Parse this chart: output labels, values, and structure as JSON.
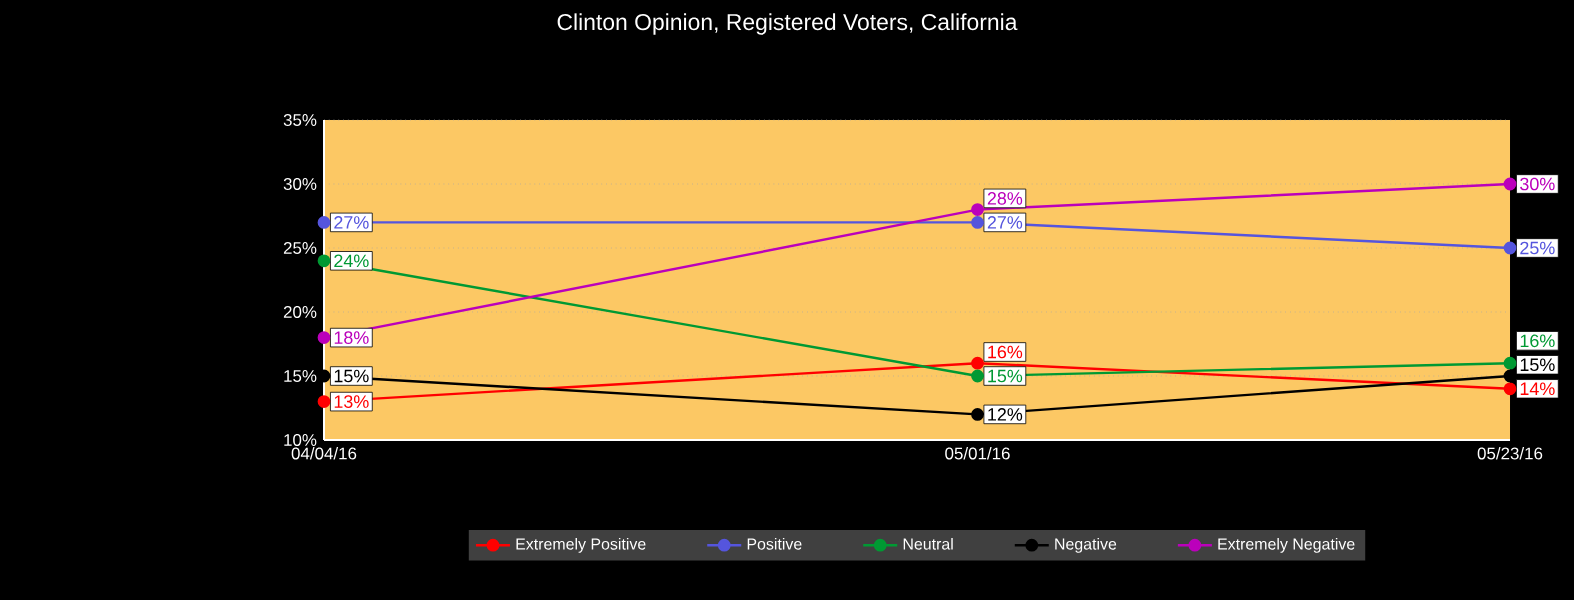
{
  "chart_data": {
    "type": "line",
    "title": "Clinton Opinion, Registered Voters, California",
    "x": [
      "2016-04-04",
      "2016-05-01",
      "2016-05-23"
    ],
    "series": [
      {
        "name": "Extremely Positive",
        "color": "#ff0000",
        "values": [
          13,
          16,
          14
        ],
        "value_labels": [
          "13%",
          "16%",
          "14%"
        ]
      },
      {
        "name": "Positive",
        "color": "#5555dd",
        "values": [
          27,
          27,
          25
        ],
        "value_labels": [
          "27%",
          "27%",
          "25%"
        ]
      },
      {
        "name": "Neutral",
        "color": "#009933",
        "values": [
          24,
          15,
          16
        ],
        "value_labels": [
          "24%",
          "15%",
          "16%"
        ]
      },
      {
        "name": "Negative",
        "color": "#000000",
        "values": [
          15,
          12,
          15
        ],
        "value_labels": [
          "15%",
          "12%",
          "15%"
        ]
      },
      {
        "name": "Extremely Negative",
        "color": "#bb00bb",
        "values": [
          18,
          28,
          30
        ],
        "value_labels": [
          "18%",
          "28%",
          "30%"
        ]
      }
    ],
    "xlim": [
      "2016-04-04",
      "2016-05-23"
    ],
    "xticks": [
      {
        "value": "2016-04-04",
        "label": "04/04/16"
      },
      {
        "value": "2016-05-01",
        "label": "05/01/16"
      },
      {
        "value": "2016-05-23",
        "label": "05/23/16"
      }
    ],
    "ylim": [
      10,
      35
    ],
    "yticks": [
      {
        "value": 10,
        "label": "10%"
      },
      {
        "value": 15,
        "label": "15%"
      },
      {
        "value": 20,
        "label": "20%"
      },
      {
        "value": 25,
        "label": "25%"
      },
      {
        "value": 30,
        "label": "30%"
      },
      {
        "value": 35,
        "label": "35%"
      }
    ],
    "grid": "y",
    "legend": "bottom",
    "marker": "circle",
    "line_style": "solid"
  }
}
